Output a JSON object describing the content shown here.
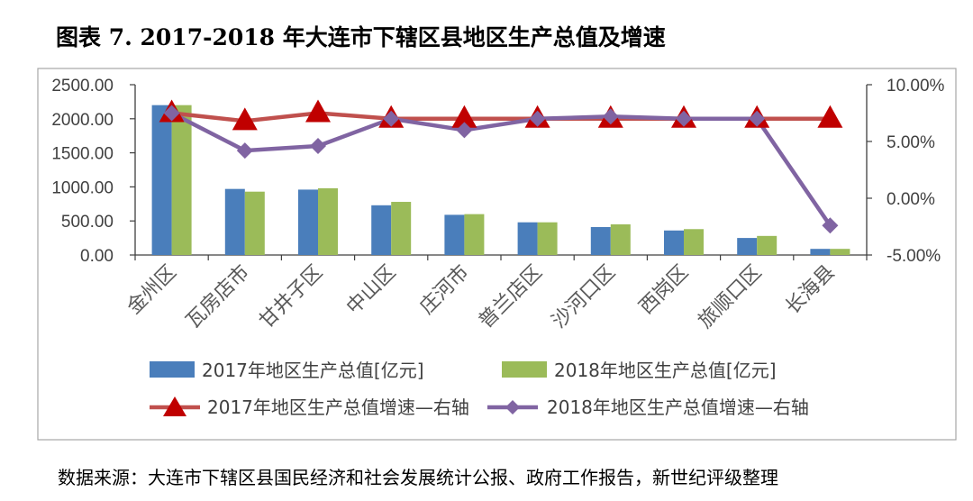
{
  "title": "图表 7. 2017-2018 年大连市下辖区县地区生产总值及增速",
  "source": "数据来源：大连市下辖区县国民经济和社会发展统计公报、政府工作报告，新世纪评级整理",
  "colors": {
    "bar2017": "#4a7ebb",
    "bar2018": "#9bbb59",
    "line2017": "#c0504d",
    "marker2017": "#c00000",
    "line2018": "#8064a2"
  },
  "chart_data": {
    "type": "bar+line",
    "categories": [
      "金州区",
      "瓦房店市",
      "甘井子区",
      "中山区",
      "庄河市",
      "普兰店区",
      "沙河口区",
      "西岗区",
      "旅顺口区",
      "长海县"
    ],
    "left_axis": {
      "ylim": [
        0,
        2500
      ],
      "ticks": [
        0,
        500,
        1000,
        1500,
        2000,
        2500
      ],
      "tick_labels": [
        "0.00",
        "500.00",
        "1000.00",
        "1500.00",
        "2000.00",
        "2500.00"
      ]
    },
    "right_axis": {
      "ylim": [
        -5,
        10
      ],
      "ticks": [
        -5,
        0,
        5,
        10
      ],
      "tick_labels": [
        "-5.00%",
        "0.00%",
        "5.00%",
        "10.00%"
      ]
    },
    "series": [
      {
        "name": "2017年地区生产总值[亿元]",
        "type": "bar",
        "axis": "left",
        "values": [
          2200,
          970,
          960,
          730,
          590,
          480,
          410,
          360,
          250,
          90
        ]
      },
      {
        "name": "2018年地区生产总值[亿元]",
        "type": "bar",
        "axis": "left",
        "values": [
          2200,
          930,
          980,
          780,
          600,
          480,
          450,
          380,
          280,
          90
        ]
      },
      {
        "name": "2017年地区生产总值增速—右轴",
        "type": "line",
        "axis": "right",
        "marker": "triangle",
        "values": [
          7.5,
          6.8,
          7.5,
          7.0,
          7.0,
          7.0,
          7.0,
          7.0,
          7.0,
          7.0
        ]
      },
      {
        "name": "2018年地区生产总值增速—右轴",
        "type": "line",
        "axis": "right",
        "marker": "diamond",
        "values": [
          7.5,
          4.2,
          4.6,
          7.0,
          6.0,
          7.0,
          7.2,
          7.0,
          7.0,
          -2.4
        ]
      }
    ]
  }
}
